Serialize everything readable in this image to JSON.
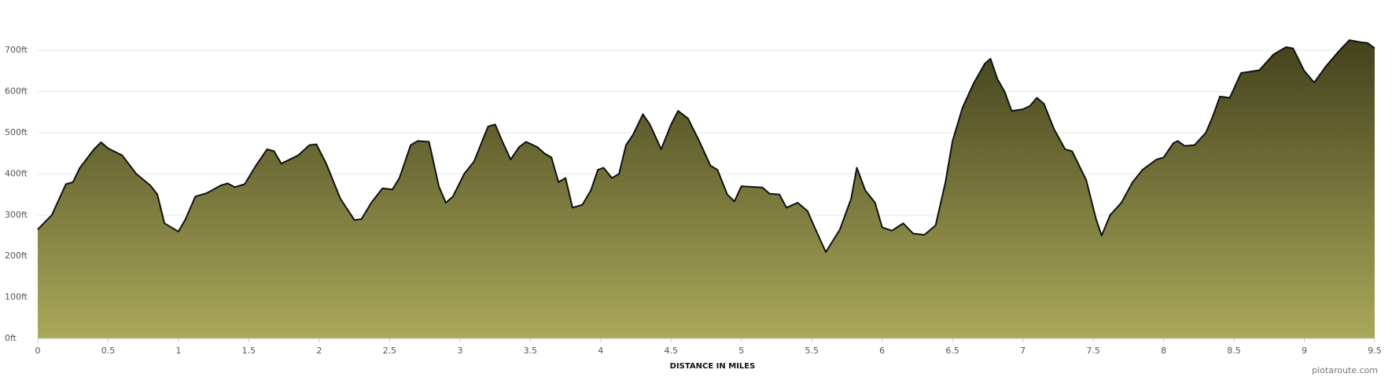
{
  "chart_data": {
    "type": "area",
    "xlabel": "DISTANCE IN MILES",
    "credit": "plotaroute.com",
    "x": [
      0,
      0.1,
      0.2,
      0.25,
      0.3,
      0.4,
      0.45,
      0.5,
      0.6,
      0.7,
      0.8,
      0.85,
      0.9,
      1.0,
      1.05,
      1.12,
      1.2,
      1.3,
      1.35,
      1.4,
      1.47,
      1.55,
      1.63,
      1.68,
      1.73,
      1.85,
      1.93,
      1.98,
      2.05,
      2.15,
      2.25,
      2.3,
      2.37,
      2.45,
      2.52,
      2.57,
      2.65,
      2.7,
      2.78,
      2.85,
      2.9,
      2.95,
      3.03,
      3.1,
      3.17,
      3.2,
      3.25,
      3.3,
      3.36,
      3.42,
      3.47,
      3.55,
      3.6,
      3.65,
      3.7,
      3.75,
      3.8,
      3.87,
      3.93,
      3.98,
      4.02,
      4.08,
      4.13,
      4.18,
      4.23,
      4.3,
      4.35,
      4.43,
      4.5,
      4.55,
      4.62,
      4.7,
      4.78,
      4.83,
      4.9,
      4.95,
      5.0,
      5.15,
      5.2,
      5.27,
      5.32,
      5.4,
      5.47,
      5.52,
      5.6,
      5.7,
      5.78,
      5.82,
      5.88,
      5.95,
      6.0,
      6.07,
      6.15,
      6.22,
      6.3,
      6.38,
      6.45,
      6.5,
      6.57,
      6.65,
      6.73,
      6.77,
      6.82,
      6.87,
      6.92,
      7.0,
      7.05,
      7.1,
      7.15,
      7.22,
      7.3,
      7.35,
      7.45,
      7.52,
      7.56,
      7.62,
      7.7,
      7.78,
      7.85,
      7.95,
      8.0,
      8.07,
      8.1,
      8.15,
      8.22,
      8.3,
      8.35,
      8.4,
      8.47,
      8.55,
      8.68,
      8.78,
      8.87,
      8.92,
      9.0,
      9.07,
      9.15,
      9.25,
      9.32,
      9.4,
      9.45,
      9.5
    ],
    "values": [
      265,
      300,
      375,
      380,
      415,
      460,
      477,
      462,
      445,
      400,
      372,
      350,
      280,
      260,
      290,
      345,
      353,
      372,
      377,
      368,
      375,
      420,
      460,
      455,
      425,
      445,
      470,
      472,
      425,
      340,
      288,
      290,
      330,
      365,
      362,
      390,
      470,
      480,
      478,
      370,
      330,
      345,
      400,
      430,
      490,
      515,
      520,
      480,
      435,
      465,
      478,
      465,
      450,
      440,
      380,
      390,
      318,
      325,
      360,
      410,
      415,
      390,
      400,
      470,
      495,
      545,
      520,
      460,
      520,
      553,
      535,
      480,
      420,
      410,
      350,
      333,
      370,
      367,
      352,
      350,
      318,
      330,
      310,
      270,
      210,
      265,
      340,
      415,
      360,
      330,
      270,
      262,
      280,
      255,
      252,
      275,
      380,
      480,
      560,
      620,
      668,
      680,
      630,
      600,
      553,
      557,
      565,
      585,
      570,
      510,
      460,
      455,
      385,
      290,
      250,
      300,
      330,
      380,
      410,
      435,
      440,
      475,
      480,
      468,
      470,
      500,
      540,
      588,
      585,
      645,
      652,
      690,
      708,
      705,
      650,
      622,
      660,
      700,
      725,
      720,
      718,
      705
    ],
    "color_top": "#43411c",
    "color_bottom": "#aaa95a",
    "line_color": "#111111",
    "xlim": [
      0,
      9.5
    ],
    "xticks": [
      0,
      0.5,
      1,
      1.5,
      2,
      2.5,
      3,
      3.5,
      4,
      4.5,
      5,
      5.5,
      6,
      6.5,
      7,
      7.5,
      8,
      8.5,
      9,
      9.5
    ],
    "ylim": [
      0,
      750
    ],
    "yticks": [
      {
        "value": 0,
        "label": "0ft"
      },
      {
        "value": 100,
        "label": "100ft"
      },
      {
        "value": 200,
        "label": "200ft"
      },
      {
        "value": 300,
        "label": "300ft"
      },
      {
        "value": 400,
        "label": "400ft"
      },
      {
        "value": 500,
        "label": "500ft"
      },
      {
        "value": 600,
        "label": "600ft"
      },
      {
        "value": 700,
        "label": "700ft"
      }
    ],
    "grid": true
  }
}
